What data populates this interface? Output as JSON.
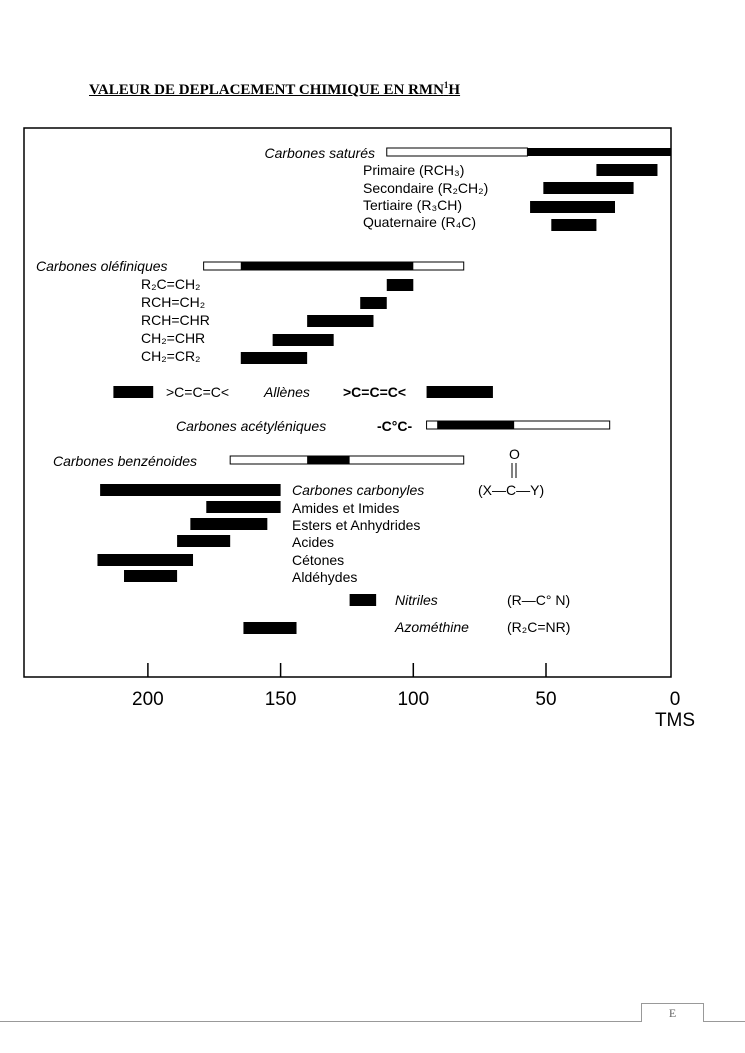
{
  "document": {
    "title_main": "VALEUR DE DEPLACEMENT CHIMIQUE EN RMN",
    "title_sup": "1",
    "title_end": "H",
    "footer_label": "E"
  },
  "chart_data": {
    "type": "bar",
    "orientation": "horizontal-range",
    "title": "",
    "xlabel": "",
    "ylabel": "",
    "xlim": [
      247,
      3
    ],
    "x_reversed": true,
    "xticks": [
      200,
      150,
      100,
      50,
      0
    ],
    "xtick_labels": [
      "200",
      "150",
      "100",
      "50",
      "0"
    ],
    "x_reference_label": "TMS",
    "grid": false,
    "bars": [
      {
        "name": "Carbones saturés",
        "open": [
          110,
          57
        ],
        "filled": [
          57,
          0
        ]
      },
      {
        "name": "Primaire (RCH₃)",
        "filled": [
          31,
          8
        ]
      },
      {
        "name": "Secondaire (R₂CH₂)",
        "filled": [
          51,
          17
        ]
      },
      {
        "name": "Tertiaire (R₃CH)",
        "filled": [
          56,
          24
        ]
      },
      {
        "name": "Quaternaire (R₄C)",
        "filled": [
          48,
          31
        ]
      },
      {
        "name": "Carbones oléfiniques",
        "open": [
          179,
          81
        ],
        "filled": [
          165,
          100
        ]
      },
      {
        "name": "R₂C=CH₂",
        "filled": [
          110,
          100
        ]
      },
      {
        "name": "RCH=CH₂",
        "filled": [
          120,
          110
        ]
      },
      {
        "name": "RCH=CHR",
        "filled": [
          140,
          115
        ]
      },
      {
        "name": "CH₂=CHR",
        "filled": [
          153,
          130
        ]
      },
      {
        "name": "CH₂=CR₂",
        "filled": [
          165,
          140
        ]
      },
      {
        "name": "Allènes >C=C=C<",
        "filled": [
          213,
          198
        ]
      },
      {
        "name": "Allènes >C=C=C< (terminal)",
        "filled": [
          95,
          70
        ]
      },
      {
        "name": "Carbones acétyléniques",
        "open": [
          95,
          26
        ],
        "filled": [
          91,
          62
        ]
      },
      {
        "name": "Carbones benzénoides",
        "open": [
          169,
          81
        ],
        "filled": [
          140,
          124
        ]
      },
      {
        "name": "Carbones carbonyles",
        "filled": [
          218,
          150
        ]
      },
      {
        "name": "Amides et Imides",
        "filled": [
          178,
          150
        ]
      },
      {
        "name": "Esters et Anhydrides",
        "filled": [
          184,
          155
        ]
      },
      {
        "name": "Acides",
        "filled": [
          189,
          169
        ]
      },
      {
        "name": "Cétones",
        "filled": [
          219,
          183
        ]
      },
      {
        "name": "Aldéhydes",
        "filled": [
          209,
          189
        ]
      },
      {
        "name": "Nitriles",
        "filled": [
          124,
          114
        ]
      },
      {
        "name": "Azométhine",
        "filled": [
          164,
          144
        ]
      }
    ],
    "labels": {
      "satures": "Carbones saturés",
      "primaire": "Primaire (RCH₃)",
      "secondaire": "Secondaire (R₂CH₂)",
      "tertiaire": "Tertiaire (R₃CH)",
      "quaternaire": "Quaternaire (R₄C)",
      "olefiniques": "Carbones oléfiniques",
      "olef1": "R₂C=CH₂",
      "olef2": "RCH=CH₂",
      "olef3": "RCH=CHR",
      "olef4": "CH₂=CHR",
      "olef5": "CH₂=CR₂",
      "allene_left": ">C=C=C<",
      "allenes": "Allènes",
      "allene_right": ">C=C=C<",
      "acetyleniques": "Carbones acétyléniques",
      "acetyl_formula": "-C°C-",
      "benzenoides": "Carbones benzénoides",
      "carbonyles": "Carbones carbonyles",
      "carbonyl_formula": "(X—C—Y)",
      "carbonyl_o": "O",
      "amides": "Amides et Imides",
      "esters": "Esters et Anhydrides",
      "acides": "Acides",
      "cetones": "Cétones",
      "aldehydes": "Aldéhydes",
      "nitriles": "Nitriles",
      "nitrile_formula": "(R—C° N)",
      "azomethine": "Azométhine",
      "azomethine_formula": "(R₂C=NR)"
    }
  }
}
